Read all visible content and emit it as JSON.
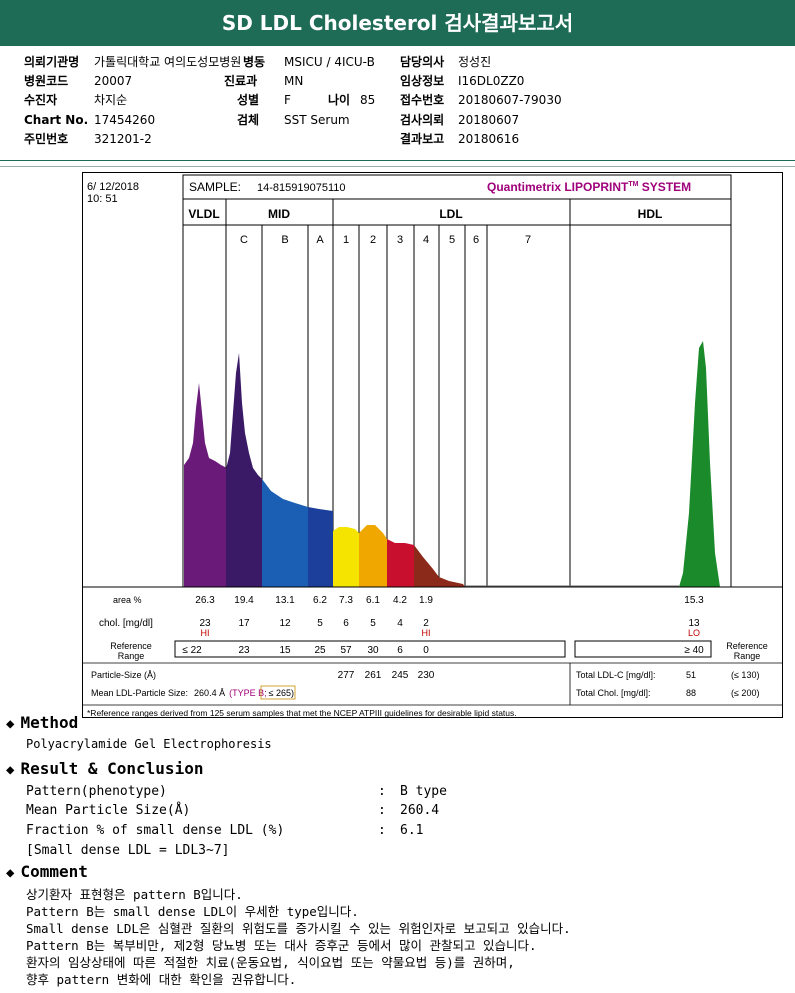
{
  "title": "SD LDL Cholesterol 검사결과보고서",
  "info": {
    "r1": {
      "l1": "의뢰기관명",
      "v1": "가톨릭대학교 여의도성모병원",
      "l2": "병동",
      "v2": "MSICU / 4ICU-B",
      "l3": "담당의사",
      "v3": "정성진"
    },
    "r2": {
      "l1": "병원코드",
      "v1": "20007",
      "l2": "진료과",
      "v2": "MN",
      "l3": "임상정보",
      "v3": "I16DL0ZZ0"
    },
    "r3": {
      "l1": "수진자",
      "v1": "차지순",
      "l2": "성별",
      "v2": "F",
      "l2b": "나이",
      "v2b": "85",
      "l3": "접수번호",
      "v3": "20180607-79030"
    },
    "r4": {
      "l1": "Chart No.",
      "v1": "17454260",
      "l2": "검체",
      "v2": "SST Serum",
      "l3": "검사의뢰",
      "v3": "20180607"
    },
    "r5": {
      "l1": "주민번호",
      "v1": "321201-2",
      "l3": "결과보고",
      "v3": "20180616"
    }
  },
  "report": {
    "date": "6/ 12/2018",
    "time": "10: 51",
    "sample_label": "SAMPLE:",
    "sample_id": "14-815919075110",
    "brand": "Quantimetrix LIPOPRINT",
    "brand_tm": "TM",
    "brand_suffix": " SYSTEM",
    "col_vldl": "VLDL",
    "col_mid": "MID",
    "col_ldl": "LDL",
    "col_hdl": "HDL",
    "sub_labels": [
      "C",
      "B",
      "A",
      "1",
      "2",
      "3",
      "4",
      "5",
      "6",
      "7"
    ],
    "row_area_label": "area %",
    "row_chol_label": "chol. [mg/dl]",
    "row_ref_label": [
      "Reference",
      "Range"
    ],
    "row_ref_label_right": [
      "Reference",
      "Range"
    ],
    "area_values": [
      "26.3",
      "19.4",
      "13.1",
      "6.2",
      "7.3",
      "6.1",
      "4.2",
      "1.9"
    ],
    "area_hdl": "15.3",
    "chol_values": [
      "23",
      "17",
      "12",
      "5",
      "6",
      "5",
      "4",
      "2"
    ],
    "chol_hdl": "13",
    "chol_flags": {
      "vldl": "HI",
      "ldl2": "HI",
      "hdl": "LO"
    },
    "ref_values": [
      "≤ 22",
      "23",
      "15",
      "25",
      "57",
      "30",
      "6",
      "0"
    ],
    "ref_hdl": "≥ 40",
    "particle_label": "Particle-Size (Å)",
    "particle_values": [
      "277",
      "261",
      "245",
      "230"
    ],
    "mean_label": "Mean LDL-Particle Size:",
    "mean_value": "260.4 Å",
    "mean_type": "(TYPE B;",
    "mean_ref": "≤ 265)",
    "total_ldl_label": "Total LDL-C [mg/dl]:",
    "total_ldl_value": "51",
    "total_ldl_ref": "(≤ 130)",
    "total_chol_label": "Total Chol. [mg/dl]:",
    "total_chol_value": "88",
    "total_chol_ref": "(≤ 200)",
    "footnote": "*Reference ranges derived from 125 serum samples that met the NCEP ATPIII guidelines for desirable lipid status."
  },
  "method": {
    "heading": "Method",
    "text": "Polyacrylamide Gel Electrophoresis"
  },
  "result": {
    "heading": "Result & Conclusion",
    "rows": [
      {
        "label": "Pattern(phenotype)",
        "colon": ":",
        "value": "B type"
      },
      {
        "label": "Mean Particle Size(Å)",
        "colon": ":",
        "value": "260.4"
      },
      {
        "label": "Fraction % of small dense LDL (%)",
        "colon": ":",
        "value": "6.1"
      }
    ],
    "note": "[Small dense LDL = LDL3~7]"
  },
  "comment": {
    "heading": "Comment",
    "lines": [
      "상기환자 표현형은 pattern B입니다.",
      "Pattern B는 small dense LDL이 우세한 type입니다.",
      "Small dense LDL은 심혈관 질환의 위험도를 증가시킬 수 있는 위험인자로 보고되고 있습니다.",
      "Pattern B는 복부비만, 제2형 당뇨병 또는 대사 증후군 등에서 많이 관찰되고 있습니다.",
      "환자의 임상상태에 따른 적절한 치료(운동요법, 식이요법 또는 약물요법 등)를 권하며,",
      "향후 pattern 변화에 대한 확인을 권유합니다."
    ]
  },
  "colors": {
    "header_bg": "#1e6b56",
    "vldl": "#6a1b7a",
    "mid_c": "#3a1a66",
    "mid_b": "#1a5fb4",
    "mid_a": "#1b3f9a",
    "ldl1": "#f5e400",
    "ldl2": "#f0a800",
    "ldl3": "#c8102e",
    "tail": "#8b2a1a",
    "hdl": "#1a8a2a",
    "brand": "#a0007a",
    "flag": "#c00000"
  },
  "icons": {
    "bullet": "diamond-bullet-icon"
  }
}
